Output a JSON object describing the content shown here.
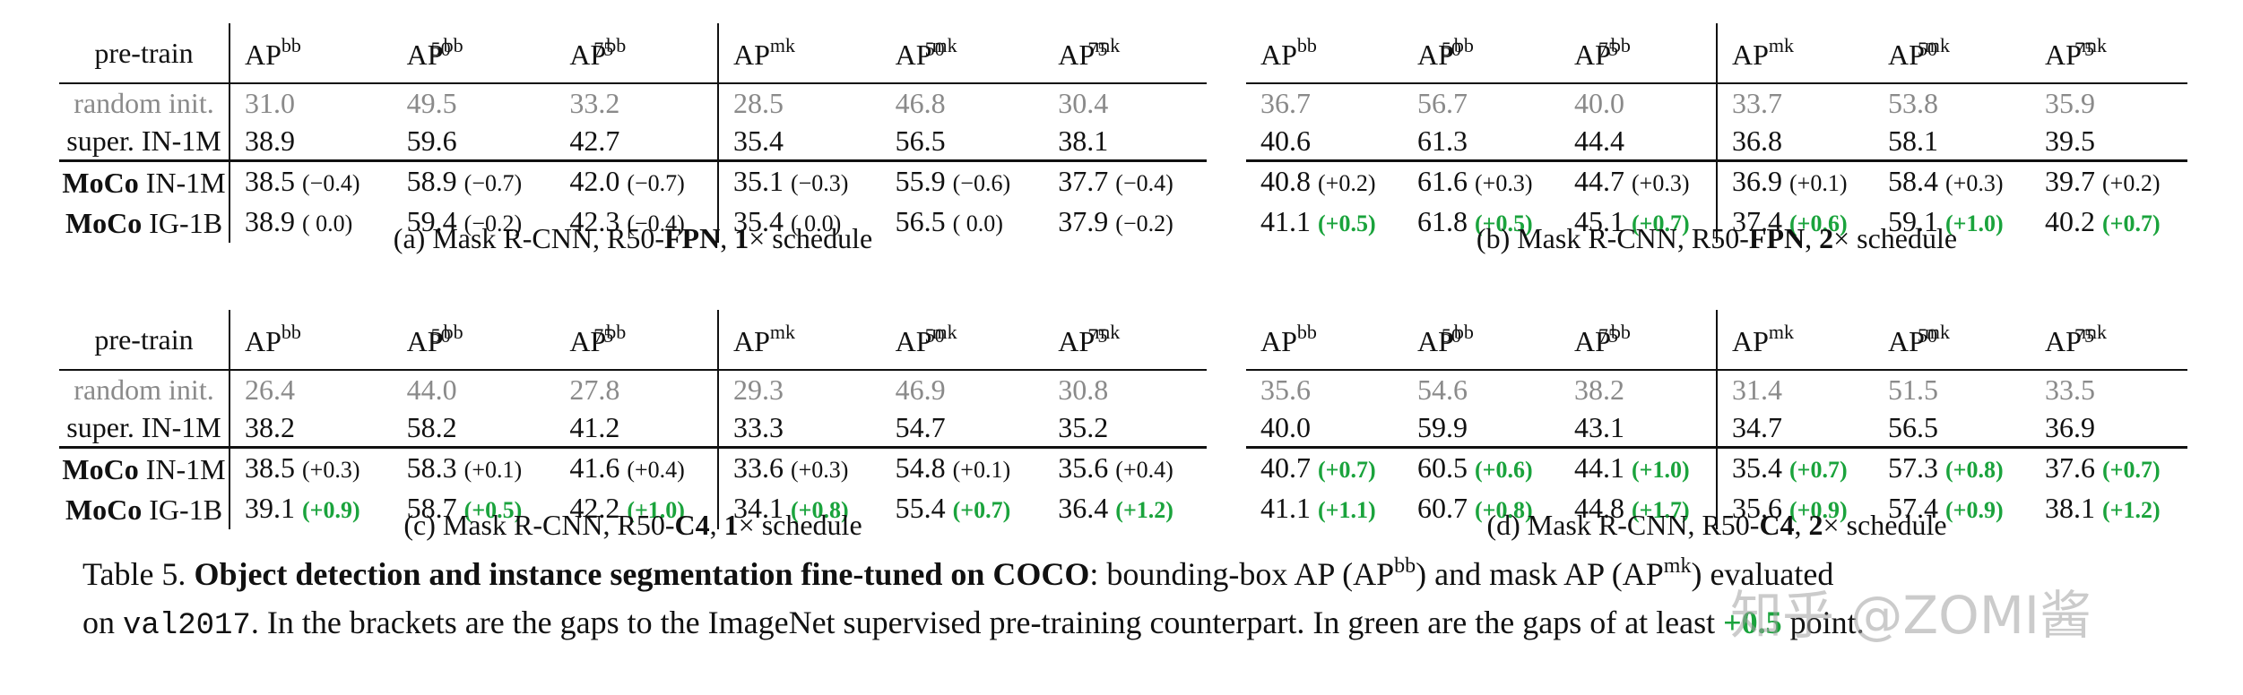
{
  "headers": {
    "pretrain": "pre-train",
    "metrics": [
      {
        "base": "AP",
        "sup": "bb",
        "sub": ""
      },
      {
        "base": "AP",
        "sup": "bb",
        "sub": "50"
      },
      {
        "base": "AP",
        "sup": "bb",
        "sub": "75"
      },
      {
        "base": "AP",
        "sup": "mk",
        "sub": ""
      },
      {
        "base": "AP",
        "sup": "mk",
        "sub": "50"
      },
      {
        "base": "AP",
        "sup": "mk",
        "sub": "75"
      }
    ]
  },
  "row_labels": [
    {
      "method": "",
      "dataset": "random init."
    },
    {
      "method": "super.",
      "dataset": "IN-1M"
    },
    {
      "method": "MoCo",
      "dataset": "IN-1M"
    },
    {
      "method": "MoCo",
      "dataset": "IG-1B"
    }
  ],
  "panels": [
    {
      "caption": "(a) Mask R-CNN, R50-FPN, 1× schedule",
      "rows": [
        [
          {
            "v": "31.0",
            "d": ""
          },
          {
            "v": "49.5",
            "d": ""
          },
          {
            "v": "33.2",
            "d": ""
          },
          {
            "v": "28.5",
            "d": ""
          },
          {
            "v": "46.8",
            "d": ""
          },
          {
            "v": "30.4",
            "d": ""
          }
        ],
        [
          {
            "v": "38.9",
            "d": ""
          },
          {
            "v": "59.6",
            "d": ""
          },
          {
            "v": "42.7",
            "d": ""
          },
          {
            "v": "35.4",
            "d": ""
          },
          {
            "v": "56.5",
            "d": ""
          },
          {
            "v": "38.1",
            "d": ""
          }
        ],
        [
          {
            "v": "38.5",
            "d": "(−0.4)",
            "g": false
          },
          {
            "v": "58.9",
            "d": "(−0.7)",
            "g": false
          },
          {
            "v": "42.0",
            "d": "(−0.7)",
            "g": false
          },
          {
            "v": "35.1",
            "d": "(−0.3)",
            "g": false
          },
          {
            "v": "55.9",
            "d": "(−0.6)",
            "g": false
          },
          {
            "v": "37.7",
            "d": "(−0.4)",
            "g": false
          }
        ],
        [
          {
            "v": "38.9",
            "d": "( 0.0)",
            "g": false
          },
          {
            "v": "59.4",
            "d": "(−0.2)",
            "g": false
          },
          {
            "v": "42.3",
            "d": "(−0.4)",
            "g": false
          },
          {
            "v": "35.4",
            "d": "( 0.0)",
            "g": false
          },
          {
            "v": "56.5",
            "d": "( 0.0)",
            "g": false
          },
          {
            "v": "37.9",
            "d": "(−0.2)",
            "g": false
          }
        ]
      ]
    },
    {
      "caption": "(b) Mask R-CNN, R50-FPN, 2× schedule",
      "rows": [
        [
          {
            "v": "36.7",
            "d": ""
          },
          {
            "v": "56.7",
            "d": ""
          },
          {
            "v": "40.0",
            "d": ""
          },
          {
            "v": "33.7",
            "d": ""
          },
          {
            "v": "53.8",
            "d": ""
          },
          {
            "v": "35.9",
            "d": ""
          }
        ],
        [
          {
            "v": "40.6",
            "d": ""
          },
          {
            "v": "61.3",
            "d": ""
          },
          {
            "v": "44.4",
            "d": ""
          },
          {
            "v": "36.8",
            "d": ""
          },
          {
            "v": "58.1",
            "d": ""
          },
          {
            "v": "39.5",
            "d": ""
          }
        ],
        [
          {
            "v": "40.8",
            "d": "(+0.2)",
            "g": false
          },
          {
            "v": "61.6",
            "d": "(+0.3)",
            "g": false
          },
          {
            "v": "44.7",
            "d": "(+0.3)",
            "g": false
          },
          {
            "v": "36.9",
            "d": "(+0.1)",
            "g": false
          },
          {
            "v": "58.4",
            "d": "(+0.3)",
            "g": false
          },
          {
            "v": "39.7",
            "d": "(+0.2)",
            "g": false
          }
        ],
        [
          {
            "v": "41.1",
            "d": "(+0.5)",
            "g": true
          },
          {
            "v": "61.8",
            "d": "(+0.5)",
            "g": true
          },
          {
            "v": "45.1",
            "d": "(+0.7)",
            "g": true
          },
          {
            "v": "37.4",
            "d": "(+0.6)",
            "g": true
          },
          {
            "v": "59.1",
            "d": "(+1.0)",
            "g": true
          },
          {
            "v": "40.2",
            "d": "(+0.7)",
            "g": true
          }
        ]
      ]
    },
    {
      "caption": "(c) Mask R-CNN, R50-C4, 1× schedule",
      "rows": [
        [
          {
            "v": "26.4",
            "d": ""
          },
          {
            "v": "44.0",
            "d": ""
          },
          {
            "v": "27.8",
            "d": ""
          },
          {
            "v": "29.3",
            "d": ""
          },
          {
            "v": "46.9",
            "d": ""
          },
          {
            "v": "30.8",
            "d": ""
          }
        ],
        [
          {
            "v": "38.2",
            "d": ""
          },
          {
            "v": "58.2",
            "d": ""
          },
          {
            "v": "41.2",
            "d": ""
          },
          {
            "v": "33.3",
            "d": ""
          },
          {
            "v": "54.7",
            "d": ""
          },
          {
            "v": "35.2",
            "d": ""
          }
        ],
        [
          {
            "v": "38.5",
            "d": "(+0.3)",
            "g": false
          },
          {
            "v": "58.3",
            "d": "(+0.1)",
            "g": false
          },
          {
            "v": "41.6",
            "d": "(+0.4)",
            "g": false
          },
          {
            "v": "33.6",
            "d": "(+0.3)",
            "g": false
          },
          {
            "v": "54.8",
            "d": "(+0.1)",
            "g": false
          },
          {
            "v": "35.6",
            "d": "(+0.4)",
            "g": false
          }
        ],
        [
          {
            "v": "39.1",
            "d": "(+0.9)",
            "g": true
          },
          {
            "v": "58.7",
            "d": "(+0.5)",
            "g": true
          },
          {
            "v": "42.2",
            "d": "(+1.0)",
            "g": true
          },
          {
            "v": "34.1",
            "d": "(+0.8)",
            "g": true
          },
          {
            "v": "55.4",
            "d": "(+0.7)",
            "g": true
          },
          {
            "v": "36.4",
            "d": "(+1.2)",
            "g": true
          }
        ]
      ]
    },
    {
      "caption": "(d) Mask R-CNN, R50-C4, 2× schedule",
      "rows": [
        [
          {
            "v": "35.6",
            "d": ""
          },
          {
            "v": "54.6",
            "d": ""
          },
          {
            "v": "38.2",
            "d": ""
          },
          {
            "v": "31.4",
            "d": ""
          },
          {
            "v": "51.5",
            "d": ""
          },
          {
            "v": "33.5",
            "d": ""
          }
        ],
        [
          {
            "v": "40.0",
            "d": ""
          },
          {
            "v": "59.9",
            "d": ""
          },
          {
            "v": "43.1",
            "d": ""
          },
          {
            "v": "34.7",
            "d": ""
          },
          {
            "v": "56.5",
            "d": ""
          },
          {
            "v": "36.9",
            "d": ""
          }
        ],
        [
          {
            "v": "40.7",
            "d": "(+0.7)",
            "g": true
          },
          {
            "v": "60.5",
            "d": "(+0.6)",
            "g": true
          },
          {
            "v": "44.1",
            "d": "(+1.0)",
            "g": true
          },
          {
            "v": "35.4",
            "d": "(+0.7)",
            "g": true
          },
          {
            "v": "57.3",
            "d": "(+0.8)",
            "g": true
          },
          {
            "v": "37.6",
            "d": "(+0.7)",
            "g": true
          }
        ],
        [
          {
            "v": "41.1",
            "d": "(+1.1)",
            "g": true
          },
          {
            "v": "60.7",
            "d": "(+0.8)",
            "g": true
          },
          {
            "v": "44.8",
            "d": "(+1.7)",
            "g": true
          },
          {
            "v": "35.6",
            "d": "(+0.9)",
            "g": true
          },
          {
            "v": "57.4",
            "d": "(+0.9)",
            "g": true
          },
          {
            "v": "38.1",
            "d": "(+1.2)",
            "g": true
          }
        ]
      ]
    }
  ],
  "captions": {
    "a": {
      "pre": "(a) Mask R-CNN, R50-",
      "bold1": "FPN",
      "mid": ", ",
      "bold2": "1",
      "post": "× schedule"
    },
    "b": {
      "pre": "(b) Mask R-CNN, R50-",
      "bold1": "FPN",
      "mid": ", ",
      "bold2": "2",
      "post": "× schedule"
    },
    "c": {
      "pre": "(c) Mask R-CNN, R50-",
      "bold1": "C4",
      "mid": ", ",
      "bold2": "1",
      "post": "× schedule"
    },
    "d": {
      "pre": "(d) Mask R-CNN, R50-",
      "bold1": "C4",
      "mid": ", ",
      "bold2": "2",
      "post": "× schedule"
    }
  },
  "main_caption": {
    "label": "Table 5.",
    "title": "Object detection and instance segmentation fine-tuned on COCO",
    "t1": ": bounding-box AP (AP",
    "sup_bb": "bb",
    "t2": ") and mask AP (AP",
    "sup_mk": "mk",
    "t3": ") evaluated",
    "t4": "on ",
    "mono": "val2017",
    "t5": ". In the brackets are the gaps to the ImageNet supervised pre-training counterpart. In green are the gaps of at least ",
    "green": "+0.5",
    "t6": " point."
  },
  "watermark": "知乎 @ZOMI酱",
  "colors": {
    "green": "#1aa33c",
    "gray": "#8a8a8a"
  }
}
